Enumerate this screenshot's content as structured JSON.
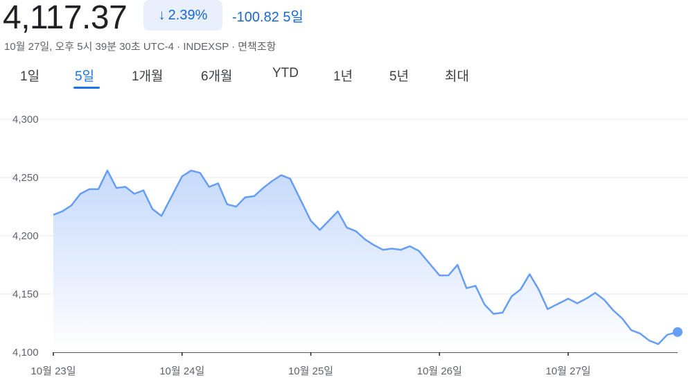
{
  "header": {
    "price": "4,117.37",
    "change_pct": "2.39%",
    "change_arrow": "↓",
    "change_abs": "-100.82",
    "change_period": "5일",
    "meta": "10월 27일, 오후 5시 39분 30초 UTC-4 · INDEXSP · 면책조항"
  },
  "tabs": [
    {
      "label": "1일",
      "active": false
    },
    {
      "label": "5일",
      "active": true
    },
    {
      "label": "1개월",
      "active": false
    },
    {
      "label": "6개월",
      "active": false
    },
    {
      "label": "YTD",
      "active": false
    },
    {
      "label": "1년",
      "active": false
    },
    {
      "label": "5년",
      "active": false
    },
    {
      "label": "최대",
      "active": false
    }
  ],
  "colors": {
    "line": "#669df6",
    "fill_top": "#c6dafc",
    "fill_bottom": "#ffffff",
    "accent": "#1a73e8",
    "change": "#1967d2"
  },
  "chart_data": {
    "type": "area",
    "ylim": [
      4100,
      4300
    ],
    "yticks": [
      4300,
      4250,
      4200,
      4150,
      4100
    ],
    "ytick_labels": [
      "4,300",
      "4,250",
      "4,200",
      "4,150",
      "4,100"
    ],
    "xlim": [
      0,
      4.85
    ],
    "xticks": [
      0,
      1,
      2,
      3,
      4
    ],
    "xtick_labels": [
      "10월 23일",
      "10월 24일",
      "10월 25일",
      "10월 26일",
      "10월 27일"
    ],
    "grid": true,
    "x": [
      0.0,
      0.07,
      0.14,
      0.21,
      0.28,
      0.35,
      0.42,
      0.49,
      0.56,
      0.63,
      0.7,
      0.77,
      0.84,
      1.0,
      1.07,
      1.14,
      1.21,
      1.28,
      1.35,
      1.42,
      1.49,
      1.56,
      1.63,
      1.7,
      1.77,
      1.84,
      2.0,
      2.07,
      2.14,
      2.21,
      2.28,
      2.35,
      2.42,
      2.49,
      2.56,
      2.63,
      2.7,
      2.77,
      2.84,
      3.0,
      3.07,
      3.14,
      3.21,
      3.28,
      3.35,
      3.42,
      3.49,
      3.56,
      3.63,
      3.7,
      3.77,
      3.84,
      4.0,
      4.07,
      4.14,
      4.21,
      4.28,
      4.35,
      4.42,
      4.49,
      4.56,
      4.63,
      4.7,
      4.77,
      4.85
    ],
    "y": [
      4218,
      4221,
      4226,
      4236,
      4240,
      4240,
      4256,
      4241,
      4242,
      4236,
      4239,
      4223,
      4217,
      4251,
      4256,
      4254,
      4242,
      4245,
      4227,
      4225,
      4233,
      4234,
      4241,
      4247,
      4252,
      4249,
      4213,
      4205,
      4213,
      4221,
      4207,
      4204,
      4197,
      4192,
      4188,
      4189,
      4188,
      4191,
      4187,
      4166,
      4166,
      4175,
      4155,
      4157,
      4141,
      4133,
      4134,
      4148,
      4154,
      4167,
      4154,
      4137,
      4146,
      4142,
      4146,
      4151,
      4145,
      4136,
      4129,
      4119,
      4116,
      4110,
      4107,
      4115,
      4117.37
    ],
    "last_value": 4117.37
  }
}
